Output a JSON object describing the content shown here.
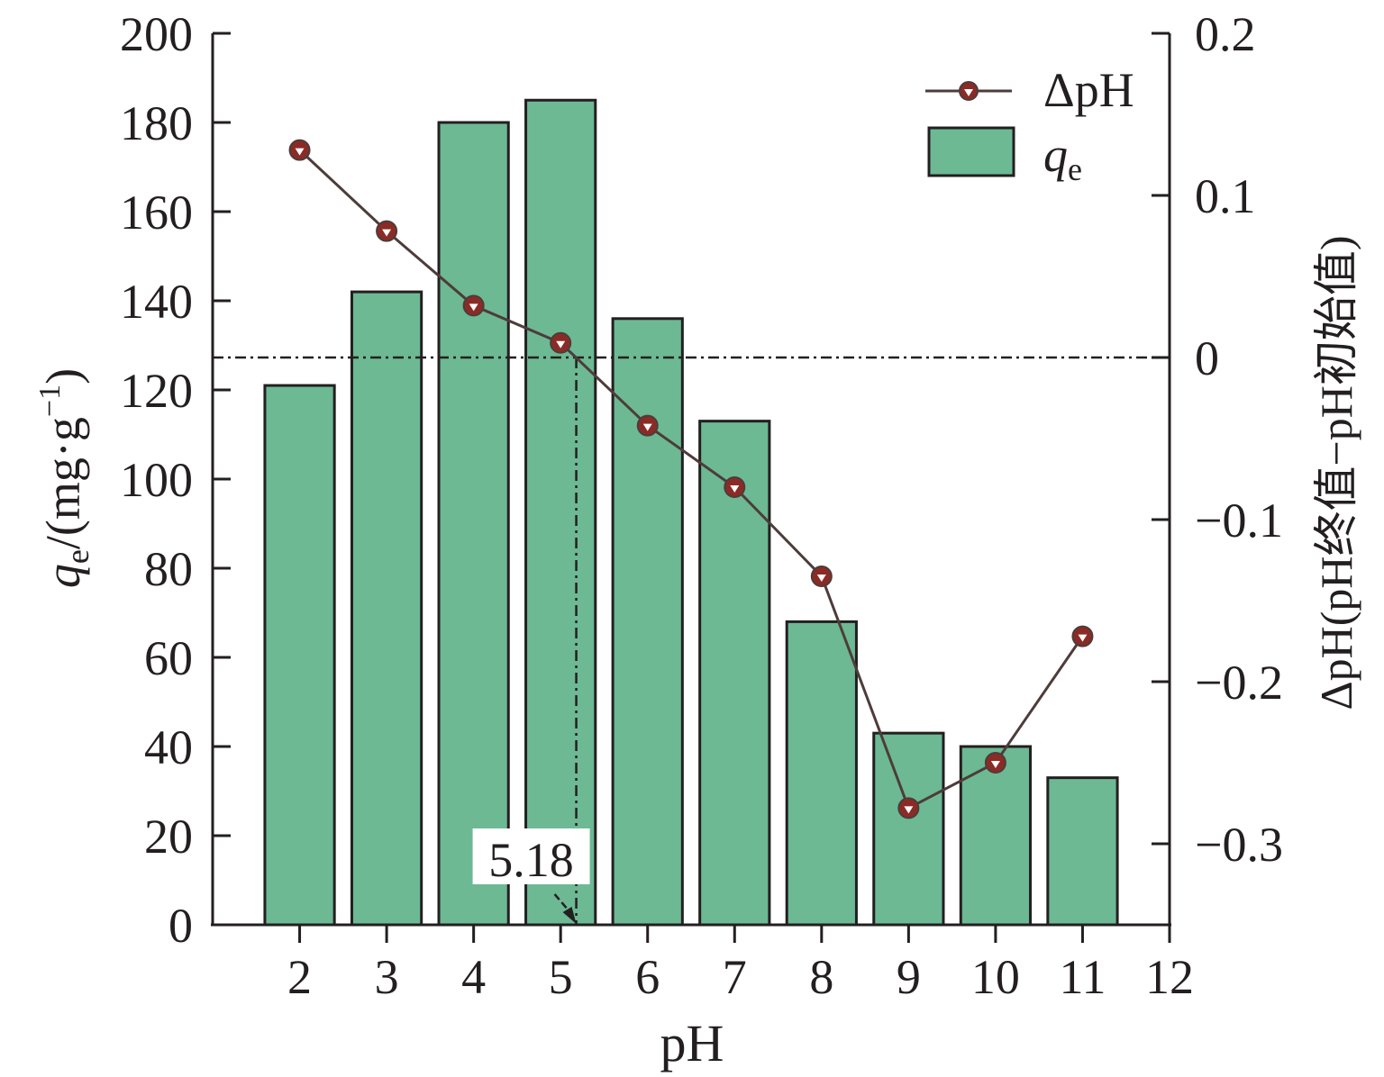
{
  "chart_data": {
    "type": "bar",
    "xlabel": "pH",
    "x_ticks": [
      "2",
      "3",
      "4",
      "5",
      "6",
      "7",
      "8",
      "9",
      "10",
      "11",
      "12"
    ],
    "xlim": [
      1,
      12
    ],
    "ylabel": {
      "symbol": "q",
      "subscript": "e",
      "unit_open": "/(mg·g",
      "unit_superscript": "−1",
      "unit_close": ")"
    },
    "ylim": [
      0,
      200
    ],
    "y_ticks": [
      "0",
      "20",
      "40",
      "60",
      "80",
      "100",
      "120",
      "140",
      "160",
      "180",
      "200"
    ],
    "y2label": "ΔpH(pH终值−pH初始值)",
    "y2lim": [
      -0.35,
      0.2
    ],
    "y2_ticks": [
      {
        "value": 0.2,
        "label": "0.2"
      },
      {
        "value": 0.1,
        "label": "0.1"
      },
      {
        "value": 0,
        "label": "0"
      },
      {
        "value": -0.1,
        "label": "−0.1"
      },
      {
        "value": -0.2,
        "label": "−0.2"
      },
      {
        "value": -0.3,
        "label": "−0.3"
      }
    ],
    "series": [
      {
        "name": "q",
        "name_subscript": "e",
        "kind": "bar",
        "axis": "left",
        "color": "#6cb994",
        "x": [
          2,
          3,
          4,
          5,
          6,
          7,
          8,
          9,
          10,
          11
        ],
        "values": [
          121,
          142,
          180,
          185,
          136,
          113,
          68,
          43,
          40,
          33
        ]
      },
      {
        "name": "ΔpH",
        "kind": "line",
        "axis": "right",
        "color": "#4d3c3a",
        "marker_color": "#8b2b26",
        "x": [
          2,
          3,
          4,
          5,
          6,
          7,
          8,
          9,
          10,
          11
        ],
        "values": [
          0.128,
          0.078,
          0.032,
          0.009,
          -0.042,
          -0.08,
          -0.135,
          -0.278,
          -0.25,
          -0.172
        ]
      }
    ],
    "reference_line": {
      "axis": "right",
      "value": 0,
      "style": "dash-dot"
    },
    "annotation": {
      "label": "5.18",
      "x": 5.18
    },
    "legend": "top-right",
    "grid": false
  }
}
